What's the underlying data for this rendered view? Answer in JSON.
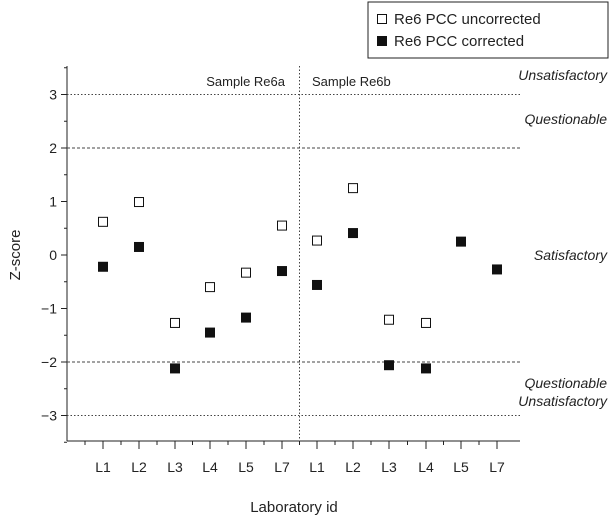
{
  "chart_data": {
    "type": "scatter",
    "xlabel": "Laboratory id",
    "ylabel": "Z-score",
    "ylim": [
      -3.5,
      3.5
    ],
    "yticks": [
      -3,
      -2,
      -1,
      0,
      1,
      2,
      3
    ],
    "categories": [
      "L1",
      "L2",
      "L3",
      "L4",
      "L5",
      "L7",
      "L1",
      "L2",
      "L3",
      "L4",
      "L5",
      "L7"
    ],
    "series": [
      {
        "name": "Re6 PCC uncorrected",
        "marker": "open-square",
        "values": [
          0.62,
          0.99,
          -1.27,
          -0.6,
          -0.33,
          0.55,
          0.27,
          1.25,
          -1.21,
          -1.27,
          null,
          null
        ]
      },
      {
        "name": "Re6 PCC corrected",
        "marker": "filled-square",
        "values": [
          -0.22,
          0.15,
          -2.12,
          -1.45,
          -1.17,
          -0.3,
          -0.56,
          0.41,
          -2.06,
          -2.12,
          0.25,
          -0.27
        ]
      }
    ],
    "groups": [
      {
        "label": "Sample Re6a"
      },
      {
        "label": "Sample Re6b"
      }
    ],
    "reference_lines": [
      {
        "y": 3,
        "style": "dotted"
      },
      {
        "y": 2,
        "style": "dashed"
      },
      {
        "y": -2,
        "style": "dashed"
      },
      {
        "y": -3,
        "style": "dotted"
      }
    ],
    "zone_labels": [
      "Unsatisfactory",
      "Questionable",
      "Satisfactory",
      "Questionable",
      "Unsatisfactory"
    ],
    "legend_position": "top-right",
    "grid": false
  }
}
